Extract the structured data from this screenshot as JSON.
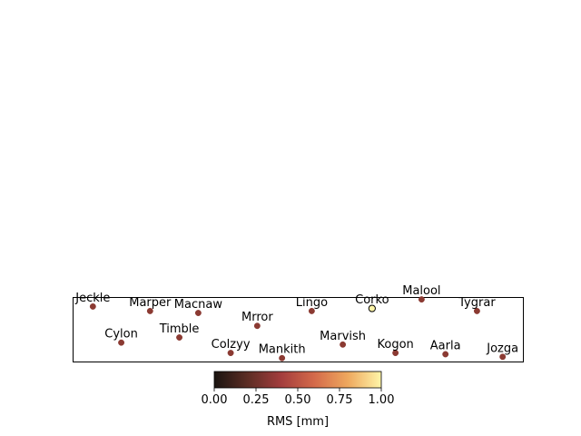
{
  "chart_data": {
    "type": "scatter",
    "title": "",
    "xlabel": "",
    "ylabel": "",
    "grid": false,
    "points": [
      {
        "name": "Jeckle",
        "x": 0.044,
        "y": 0.86,
        "value": 0.3
      },
      {
        "name": "Marper",
        "x": 0.171,
        "y": 0.79,
        "value": 0.3
      },
      {
        "name": "Macnaw",
        "x": 0.278,
        "y": 0.76,
        "value": 0.3
      },
      {
        "name": "Lingo",
        "x": 0.53,
        "y": 0.79,
        "value": 0.3
      },
      {
        "name": "Corko",
        "x": 0.664,
        "y": 0.83,
        "value": 1.0
      },
      {
        "name": "Malool",
        "x": 0.774,
        "y": 0.97,
        "value": 0.3
      },
      {
        "name": "Tygrar",
        "x": 0.897,
        "y": 0.79,
        "value": 0.3
      },
      {
        "name": "Mrror",
        "x": 0.409,
        "y": 0.56,
        "value": 0.3
      },
      {
        "name": "Cylon",
        "x": 0.107,
        "y": 0.3,
        "value": 0.3
      },
      {
        "name": "Timble",
        "x": 0.236,
        "y": 0.38,
        "value": 0.3
      },
      {
        "name": "Marvish",
        "x": 0.599,
        "y": 0.27,
        "value": 0.3
      },
      {
        "name": "Colzyy",
        "x": 0.35,
        "y": 0.14,
        "value": 0.3
      },
      {
        "name": "Mankith",
        "x": 0.464,
        "y": 0.06,
        "value": 0.3
      },
      {
        "name": "Kogon",
        "x": 0.716,
        "y": 0.14,
        "value": 0.3
      },
      {
        "name": "Aarla",
        "x": 0.827,
        "y": 0.12,
        "value": 0.3
      },
      {
        "name": "Jozga",
        "x": 0.954,
        "y": 0.08,
        "value": 0.3
      }
    ],
    "xlim": [
      0,
      1
    ],
    "ylim": [
      0,
      1
    ],
    "colorbar": {
      "label": "RMS [mm]",
      "range": [
        0,
        1
      ],
      "ticks": [
        "0.00",
        "0.25",
        "0.50",
        "0.75",
        "1.00"
      ],
      "colormap": [
        "#1a1410",
        "#5c2d24",
        "#a33d3d",
        "#d46a4a",
        "#eea85e",
        "#fff5a8"
      ]
    },
    "colors": {
      "low_marker": "#8b3a32",
      "high_marker": "#fff5a8",
      "high_marker_edge": "#000000"
    }
  }
}
